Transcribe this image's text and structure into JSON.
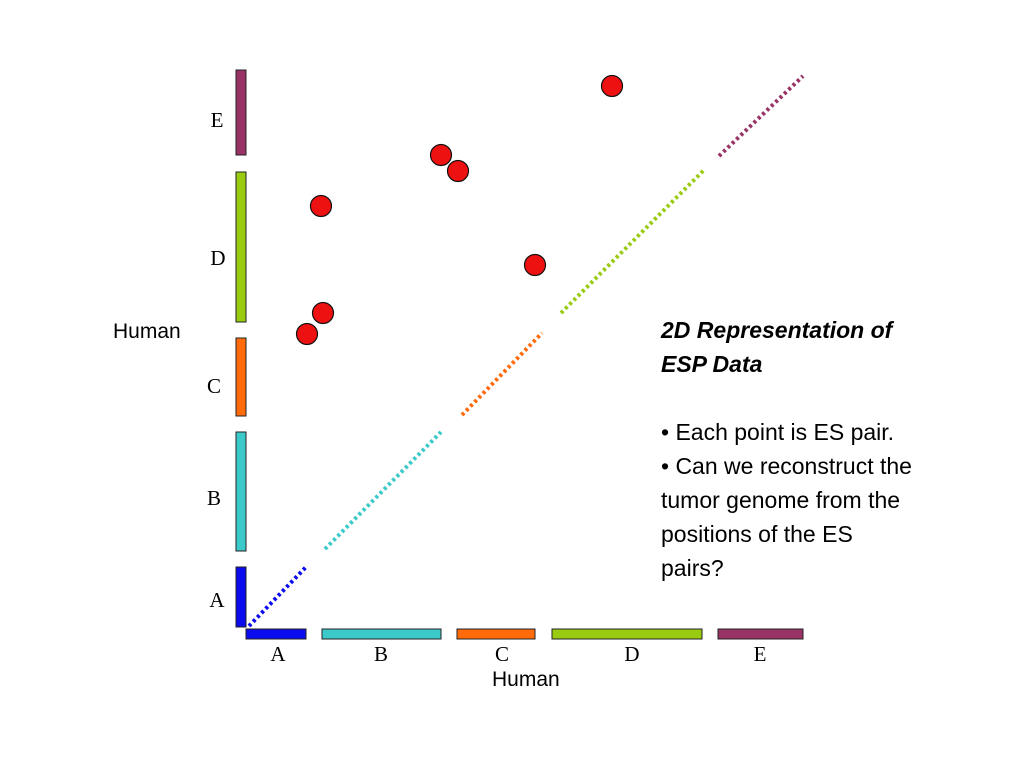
{
  "segments": [
    {
      "name": "A",
      "color": "#0b0bf0"
    },
    {
      "name": "B",
      "color": "#3cc9c9"
    },
    {
      "name": "C",
      "color": "#ff6a0a"
    },
    {
      "name": "D",
      "color": "#99cc11"
    },
    {
      "name": "E",
      "color": "#993366"
    }
  ],
  "axes": {
    "x_label": "Human",
    "y_label": "Human"
  },
  "point_color": "#ee1111",
  "caption": {
    "title_line1": "2D Representation of",
    "title_line2": "ESP Data",
    "bullet1": "• Each point is ES pair.",
    "bullet2_line1": "• Can we reconstruct the",
    "bullet2_line2": "tumor genome from the",
    "bullet2_line3": "positions of the ES",
    "bullet2_line4": "pairs?"
  }
}
